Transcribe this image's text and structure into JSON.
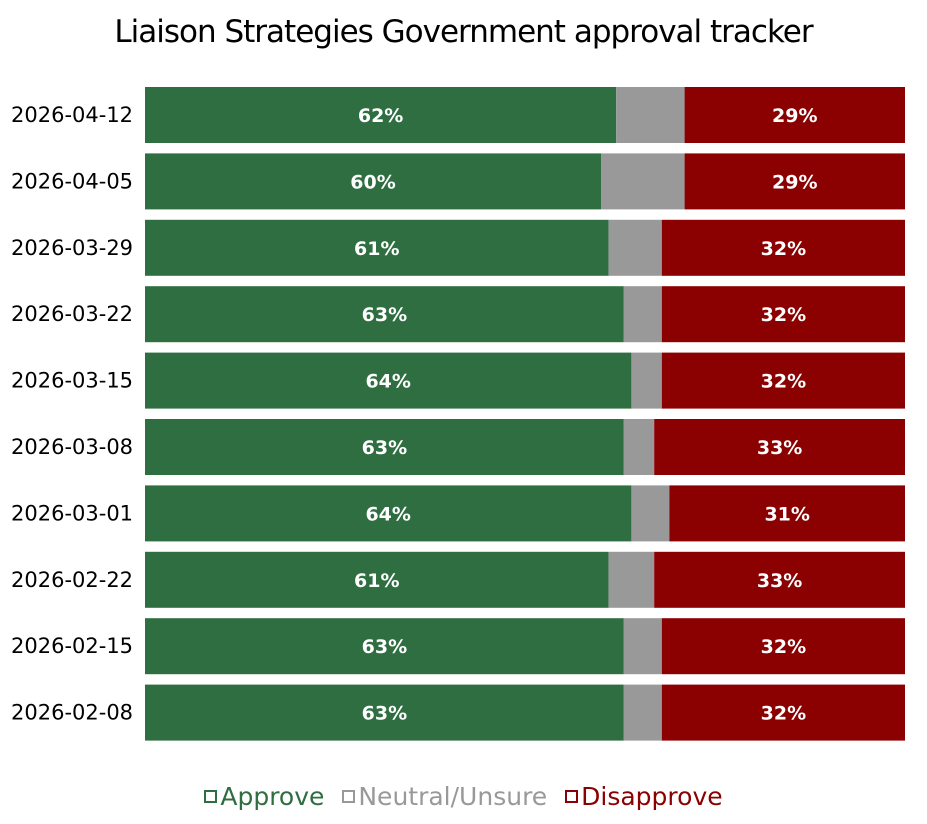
{
  "chart_data": {
    "type": "bar",
    "orientation": "horizontal-stacked",
    "title": "Liaison Strategies Government approval tracker",
    "categories": [
      "2026-04-12",
      "2026-04-05",
      "2026-03-29",
      "2026-03-22",
      "2026-03-15",
      "2026-03-08",
      "2026-03-01",
      "2026-02-22",
      "2026-02-15",
      "2026-02-08"
    ],
    "series": [
      {
        "name": "Approve",
        "color": "#2e6e40",
        "values": [
          62,
          60,
          61,
          63,
          64,
          63,
          64,
          61,
          63,
          63
        ],
        "labels": [
          "62%",
          "60%",
          "61%",
          "63%",
          "64%",
          "63%",
          "64%",
          "61%",
          "63%",
          "63%"
        ]
      },
      {
        "name": "Neutral/Unsure",
        "color": "#999999",
        "values": [
          9,
          11,
          7,
          5,
          4,
          4,
          5,
          6,
          5,
          5
        ],
        "labels": [
          "",
          "",
          "",
          "",
          "",
          "",
          "",
          "",
          "",
          ""
        ]
      },
      {
        "name": "Disapprove",
        "color": "#8b0000",
        "values": [
          29,
          29,
          32,
          32,
          32,
          33,
          31,
          33,
          32,
          32
        ],
        "labels": [
          "29%",
          "29%",
          "32%",
          "32%",
          "32%",
          "33%",
          "31%",
          "33%",
          "32%",
          "32%"
        ]
      }
    ],
    "xlim": [
      0,
      100
    ],
    "legend_position": "bottom"
  }
}
